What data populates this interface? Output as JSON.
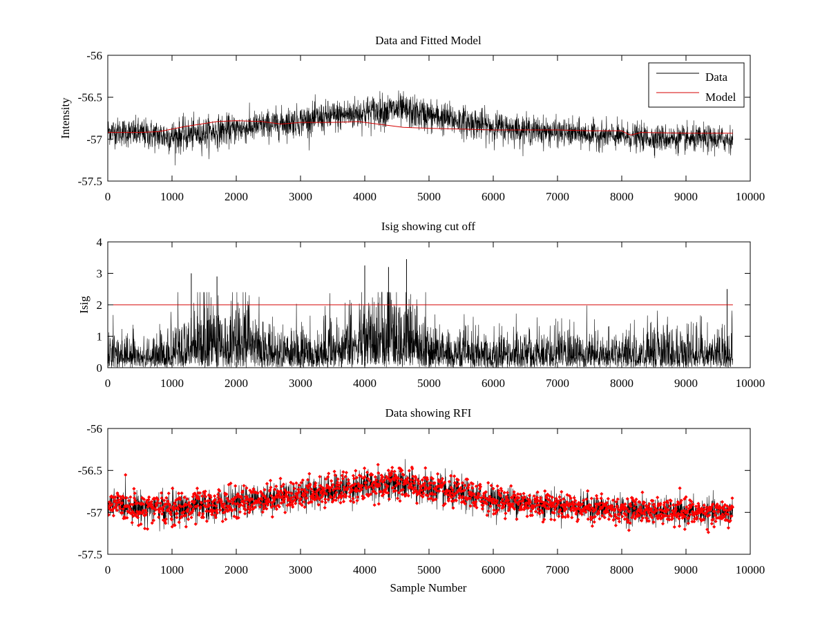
{
  "chart_data": [
    {
      "type": "line",
      "title": "Data and Fitted Model",
      "xlabel": "",
      "ylabel": "Intensity",
      "xlim": [
        0,
        10000
      ],
      "ylim": [
        -57.5,
        -56
      ],
      "xticks": [
        0,
        1000,
        2000,
        3000,
        4000,
        5000,
        6000,
        7000,
        8000,
        9000,
        10000
      ],
      "yticks": [
        -56,
        -56.5,
        -57,
        -57.5
      ],
      "xtick_labels": [
        "0",
        "1000",
        "2000",
        "3000",
        "4000",
        "5000",
        "6000",
        "7000",
        "8000",
        "9000",
        "10000"
      ],
      "ytick_labels": [
        "-56",
        "-56.5",
        "-57",
        "-57.5"
      ],
      "n_samples": 9730,
      "legend": {
        "placement": "top-right",
        "entries": [
          "Data",
          "Model"
        ]
      },
      "series": [
        {
          "name": "Data",
          "color": "#000000",
          "style": "noisy-line",
          "trend": {
            "x": [
              0,
              1000,
              2000,
              3000,
              4000,
              4500,
              5000,
              6000,
              7000,
              8000,
              9000,
              9730
            ],
            "y": [
              -56.9,
              -56.97,
              -56.88,
              -56.78,
              -56.68,
              -56.65,
              -56.72,
              -56.85,
              -56.92,
              -56.97,
              -57.0,
              -57.0
            ]
          },
          "noise": {
            "x": [
              0,
              1000,
              2000,
              3000,
              4000,
              5000,
              6000,
              7000,
              8000,
              9000,
              9730
            ],
            "y": [
              0.08,
              0.1,
              0.09,
              0.09,
              0.1,
              0.1,
              0.09,
              0.08,
              0.08,
              0.08,
              0.08
            ]
          }
        },
        {
          "name": "Model",
          "color": "#d40000",
          "style": "line",
          "x": [
            0,
            500,
            800,
            1200,
            1700,
            2000,
            2400,
            2700,
            3000,
            3500,
            3900,
            4200,
            4600,
            5000,
            5500,
            6000,
            6500,
            7000,
            7500,
            8000,
            8100,
            8150,
            8300,
            9000,
            9730
          ],
          "y": [
            -56.92,
            -56.92,
            -56.91,
            -56.85,
            -56.79,
            -56.78,
            -56.79,
            -56.82,
            -56.8,
            -56.8,
            -56.79,
            -56.82,
            -56.86,
            -56.87,
            -56.88,
            -56.89,
            -56.89,
            -56.89,
            -56.9,
            -56.9,
            -56.94,
            -56.95,
            -56.92,
            -56.93,
            -56.93
          ]
        }
      ]
    },
    {
      "type": "line",
      "title": "Isig showing cut off",
      "xlabel": "",
      "ylabel": "Isig",
      "xlim": [
        0,
        10000
      ],
      "ylim": [
        0,
        4
      ],
      "xticks": [
        0,
        1000,
        2000,
        3000,
        4000,
        5000,
        6000,
        7000,
        8000,
        9000,
        10000
      ],
      "yticks": [
        0,
        1,
        2,
        3,
        4
      ],
      "xtick_labels": [
        "0",
        "1000",
        "2000",
        "3000",
        "4000",
        "5000",
        "6000",
        "7000",
        "8000",
        "9000",
        "10000"
      ],
      "ytick_labels": [
        "0",
        "1",
        "2",
        "3",
        "4"
      ],
      "n_samples": 9730,
      "cutoff": 2,
      "series": [
        {
          "name": "Isig",
          "color": "#000000",
          "style": "abs-noise",
          "scale": {
            "x": [
              0,
              900,
              1500,
              2200,
              2700,
              3300,
              3900,
              4500,
              5100,
              5600,
              6500,
              7500,
              8300,
              9000,
              9730
            ],
            "y": [
              0.5,
              0.55,
              1.1,
              0.95,
              0.55,
              0.6,
              1.05,
              1.3,
              0.65,
              0.55,
              0.55,
              0.6,
              0.55,
              0.6,
              0.6
            ]
          },
          "peaks": [
            {
              "x": 4650,
              "y": 3.45
            },
            {
              "x": 4000,
              "y": 3.25
            },
            {
              "x": 4370,
              "y": 3.2
            },
            {
              "x": 1300,
              "y": 3.0
            },
            {
              "x": 1700,
              "y": 2.9
            },
            {
              "x": 9640,
              "y": 2.5
            }
          ]
        },
        {
          "name": "Cut off",
          "color": "#d40000",
          "style": "hline",
          "x": [
            0,
            9730
          ],
          "y": [
            2,
            2
          ]
        }
      ]
    },
    {
      "type": "line",
      "title": "Data showing RFI",
      "xlabel": "Sample Number",
      "ylabel": "",
      "xlim": [
        0,
        10000
      ],
      "ylim": [
        -57.5,
        -56
      ],
      "xticks": [
        0,
        1000,
        2000,
        3000,
        4000,
        5000,
        6000,
        7000,
        8000,
        9000,
        10000
      ],
      "yticks": [
        -56,
        -56.5,
        -57,
        -57.5
      ],
      "xtick_labels": [
        "0",
        "1000",
        "2000",
        "3000",
        "4000",
        "5000",
        "6000",
        "7000",
        "8000",
        "9000",
        "10000"
      ],
      "ytick_labels": [
        "-56",
        "-56.5",
        "-57",
        "-57.5"
      ],
      "n_samples": 9730,
      "series": [
        {
          "name": "Data",
          "color": "#000000",
          "style": "noisy-line",
          "trend": {
            "x": [
              0,
              1000,
              2000,
              3000,
              4000,
              4500,
              5000,
              6000,
              7000,
              8000,
              9000,
              9730
            ],
            "y": [
              -56.9,
              -56.97,
              -56.88,
              -56.78,
              -56.68,
              -56.65,
              -56.72,
              -56.85,
              -56.92,
              -56.97,
              -57.0,
              -57.0
            ]
          },
          "noise": {
            "x": [
              0,
              1000,
              2000,
              3000,
              4000,
              5000,
              6000,
              7000,
              8000,
              9000,
              9730
            ],
            "y": [
              0.08,
              0.1,
              0.09,
              0.09,
              0.1,
              0.1,
              0.09,
              0.08,
              0.08,
              0.08,
              0.08
            ]
          }
        },
        {
          "name": "RFI flagged",
          "color": "#ff0000",
          "style": "markers"
        }
      ]
    }
  ]
}
